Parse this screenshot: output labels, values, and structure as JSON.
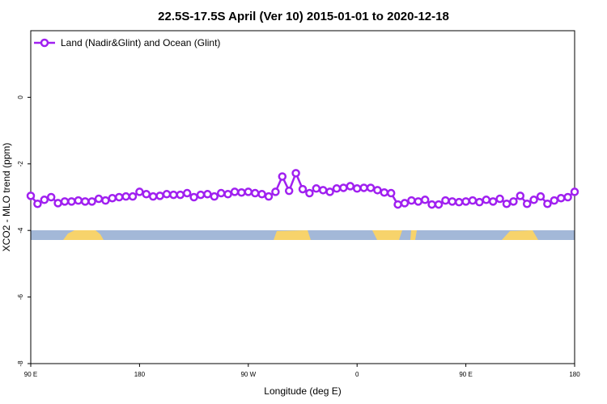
{
  "chart_data": {
    "type": "line",
    "title": "22.5S-17.5S April (Ver 10)   2015-01-01 to 2020-12-18",
    "x_label": "Longitude (deg E)",
    "y_label": "XCO2 - MLO trend (ppm)",
    "xlim": [
      90,
      540
    ],
    "ylim": [
      -8,
      2
    ],
    "xticks": [
      {
        "value": 90,
        "label": "90 E"
      },
      {
        "value": 180,
        "label": "180"
      },
      {
        "value": 270,
        "label": "90 W"
      },
      {
        "value": 360,
        "label": "0"
      },
      {
        "value": 450,
        "label": "90 E"
      },
      {
        "value": 540,
        "label": "180"
      }
    ],
    "yticks": [
      -8,
      -6,
      -4,
      -2,
      0
    ],
    "legend": "top-left",
    "x": [
      90,
      95.625,
      101.25,
      106.875,
      112.5,
      118.125,
      123.75,
      129.375,
      135,
      140.625,
      146.25,
      151.875,
      157.5,
      163.125,
      168.75,
      174.375,
      180,
      185.625,
      191.25,
      196.875,
      202.5,
      208.125,
      213.75,
      219.375,
      225,
      230.625,
      236.25,
      241.875,
      247.5,
      253.125,
      258.75,
      264.375,
      270,
      275.625,
      281.25,
      286.875,
      292.5,
      298.125,
      303.75,
      309.375,
      315,
      320.625,
      326.25,
      331.875,
      337.5,
      343.125,
      348.75,
      354.375,
      360,
      365.625,
      371.25,
      376.875,
      382.5,
      388.125,
      393.75,
      399.375,
      405,
      410.625,
      416.25,
      421.875,
      427.5,
      433.125,
      438.75,
      444.375,
      450,
      455.625,
      461.25,
      466.875,
      472.5,
      478.125,
      483.75,
      489.375,
      495,
      500.625,
      506.25,
      511.875,
      517.5,
      523.125,
      528.75,
      534.375,
      540
    ],
    "series": [
      {
        "name": "Land (Nadir&Glint) and Ocean (Glint)",
        "color": "#a020f0",
        "values": [
          -2.96,
          -3.2,
          -3.08,
          -3.0,
          -3.18,
          -3.13,
          -3.13,
          -3.1,
          -3.13,
          -3.13,
          -3.05,
          -3.1,
          -3.03,
          -3.0,
          -2.98,
          -2.98,
          -2.84,
          -2.91,
          -2.98,
          -2.96,
          -2.91,
          -2.93,
          -2.93,
          -2.88,
          -3.0,
          -2.93,
          -2.91,
          -2.98,
          -2.88,
          -2.91,
          -2.84,
          -2.86,
          -2.84,
          -2.88,
          -2.91,
          -2.98,
          -2.84,
          -2.38,
          -2.81,
          -2.28,
          -2.76,
          -2.88,
          -2.74,
          -2.79,
          -2.84,
          -2.74,
          -2.72,
          -2.67,
          -2.74,
          -2.72,
          -2.72,
          -2.79,
          -2.86,
          -2.88,
          -3.22,
          -3.18,
          -3.1,
          -3.13,
          -3.08,
          -3.22,
          -3.22,
          -3.1,
          -3.13,
          -3.15,
          -3.13,
          -3.1,
          -3.15,
          -3.08,
          -3.13,
          -3.05,
          -3.2,
          -3.13,
          -2.96,
          -3.2,
          -3.08,
          -2.98,
          -3.2,
          -3.1,
          -3.03,
          -3.0,
          -2.84
        ]
      }
    ]
  }
}
